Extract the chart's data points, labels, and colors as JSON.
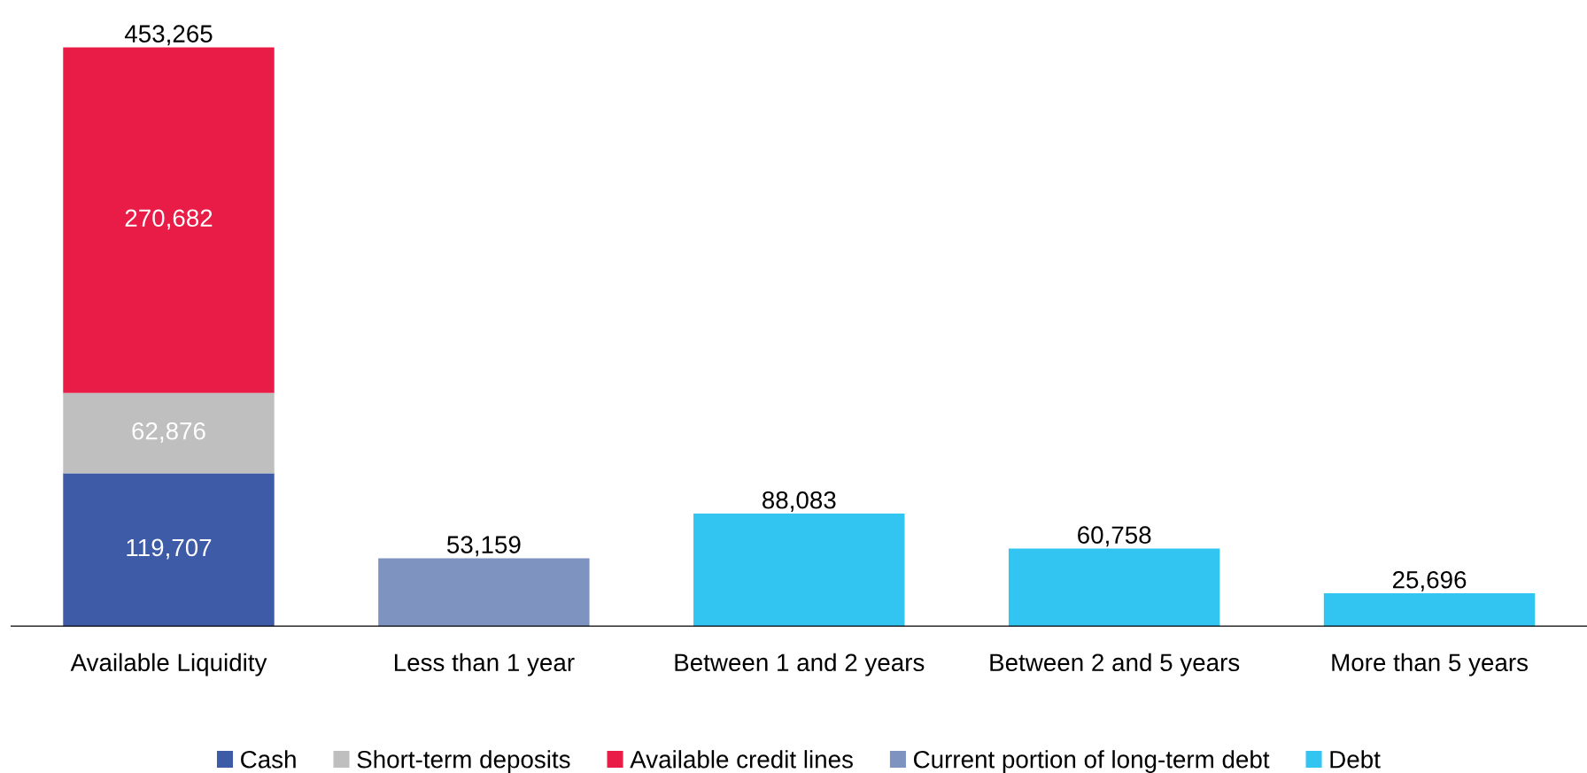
{
  "chart_data": {
    "type": "bar",
    "stacked": true,
    "legend": "bottom",
    "categories": [
      "Available Liquidity",
      "Less than 1 year",
      "Between 1 and 2 years",
      "Between 2 and 5 years",
      "More than 5 years"
    ],
    "series": [
      {
        "name": "Cash",
        "color": "#3e5ba8",
        "values": [
          119707,
          null,
          null,
          null,
          null
        ],
        "value_labels": [
          "119,707",
          null,
          null,
          null,
          null
        ]
      },
      {
        "name": "Short-term deposits",
        "color": "#bfbfbf",
        "values": [
          62876,
          null,
          null,
          null,
          null
        ],
        "value_labels": [
          "62,876",
          null,
          null,
          null,
          null
        ]
      },
      {
        "name": "Available credit lines",
        "color": "#e91c47",
        "values": [
          270682,
          null,
          null,
          null,
          null
        ],
        "value_labels": [
          "270,682",
          null,
          null,
          null,
          null
        ]
      },
      {
        "name": "Current portion of long-term debt",
        "color": "#7f93c0",
        "values": [
          null,
          53159,
          null,
          null,
          null
        ],
        "value_labels": [
          null,
          "53,159",
          null,
          null,
          null
        ]
      },
      {
        "name": "Debt",
        "color": "#33c5f2",
        "values": [
          null,
          null,
          88083,
          60758,
          25696
        ],
        "value_labels": [
          null,
          null,
          "88,083",
          "60,758",
          "25,696"
        ]
      }
    ],
    "totals": [
      "453,265",
      null,
      null,
      null,
      null
    ]
  }
}
